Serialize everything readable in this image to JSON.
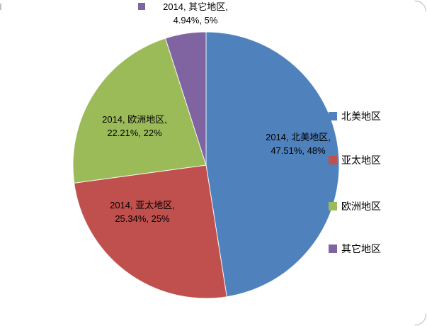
{
  "chart_data": {
    "type": "pie",
    "title": "",
    "series_name": "2014",
    "legend_position": "right",
    "start_angle_deg": 0,
    "direction": "clockwise",
    "background": "#ffffff",
    "slices": [
      {
        "label": "北美地区",
        "value": 47.51,
        "display_pct": "47.51%",
        "display_rounded": "48%",
        "color": "#4F81BD"
      },
      {
        "label": "亚太地区",
        "value": 25.34,
        "display_pct": "25.34%",
        "display_rounded": "25%",
        "color": "#C0504D"
      },
      {
        "label": "欧洲地区",
        "value": 22.21,
        "display_pct": "22.21%",
        "display_rounded": "22%",
        "color": "#9BBB59"
      },
      {
        "label": "其它地区",
        "value": 4.94,
        "display_pct": "4.94%",
        "display_rounded": "5%",
        "color": "#8064A2"
      }
    ],
    "data_labels": [
      {
        "line1": "2014, 北美地区,",
        "line2": "47.51%, 48%",
        "placement": "inside"
      },
      {
        "line1": "2014, 亚太地区,",
        "line2": "25.34%, 25%",
        "placement": "inside"
      },
      {
        "line1": "2014, 欧洲地区,",
        "line2": "22.21%, 22%",
        "placement": "inside"
      },
      {
        "line1": "2014, 其它地区,",
        "line2": "4.94%, 5%",
        "placement": "outside-top",
        "has_legend_key": true
      }
    ]
  }
}
